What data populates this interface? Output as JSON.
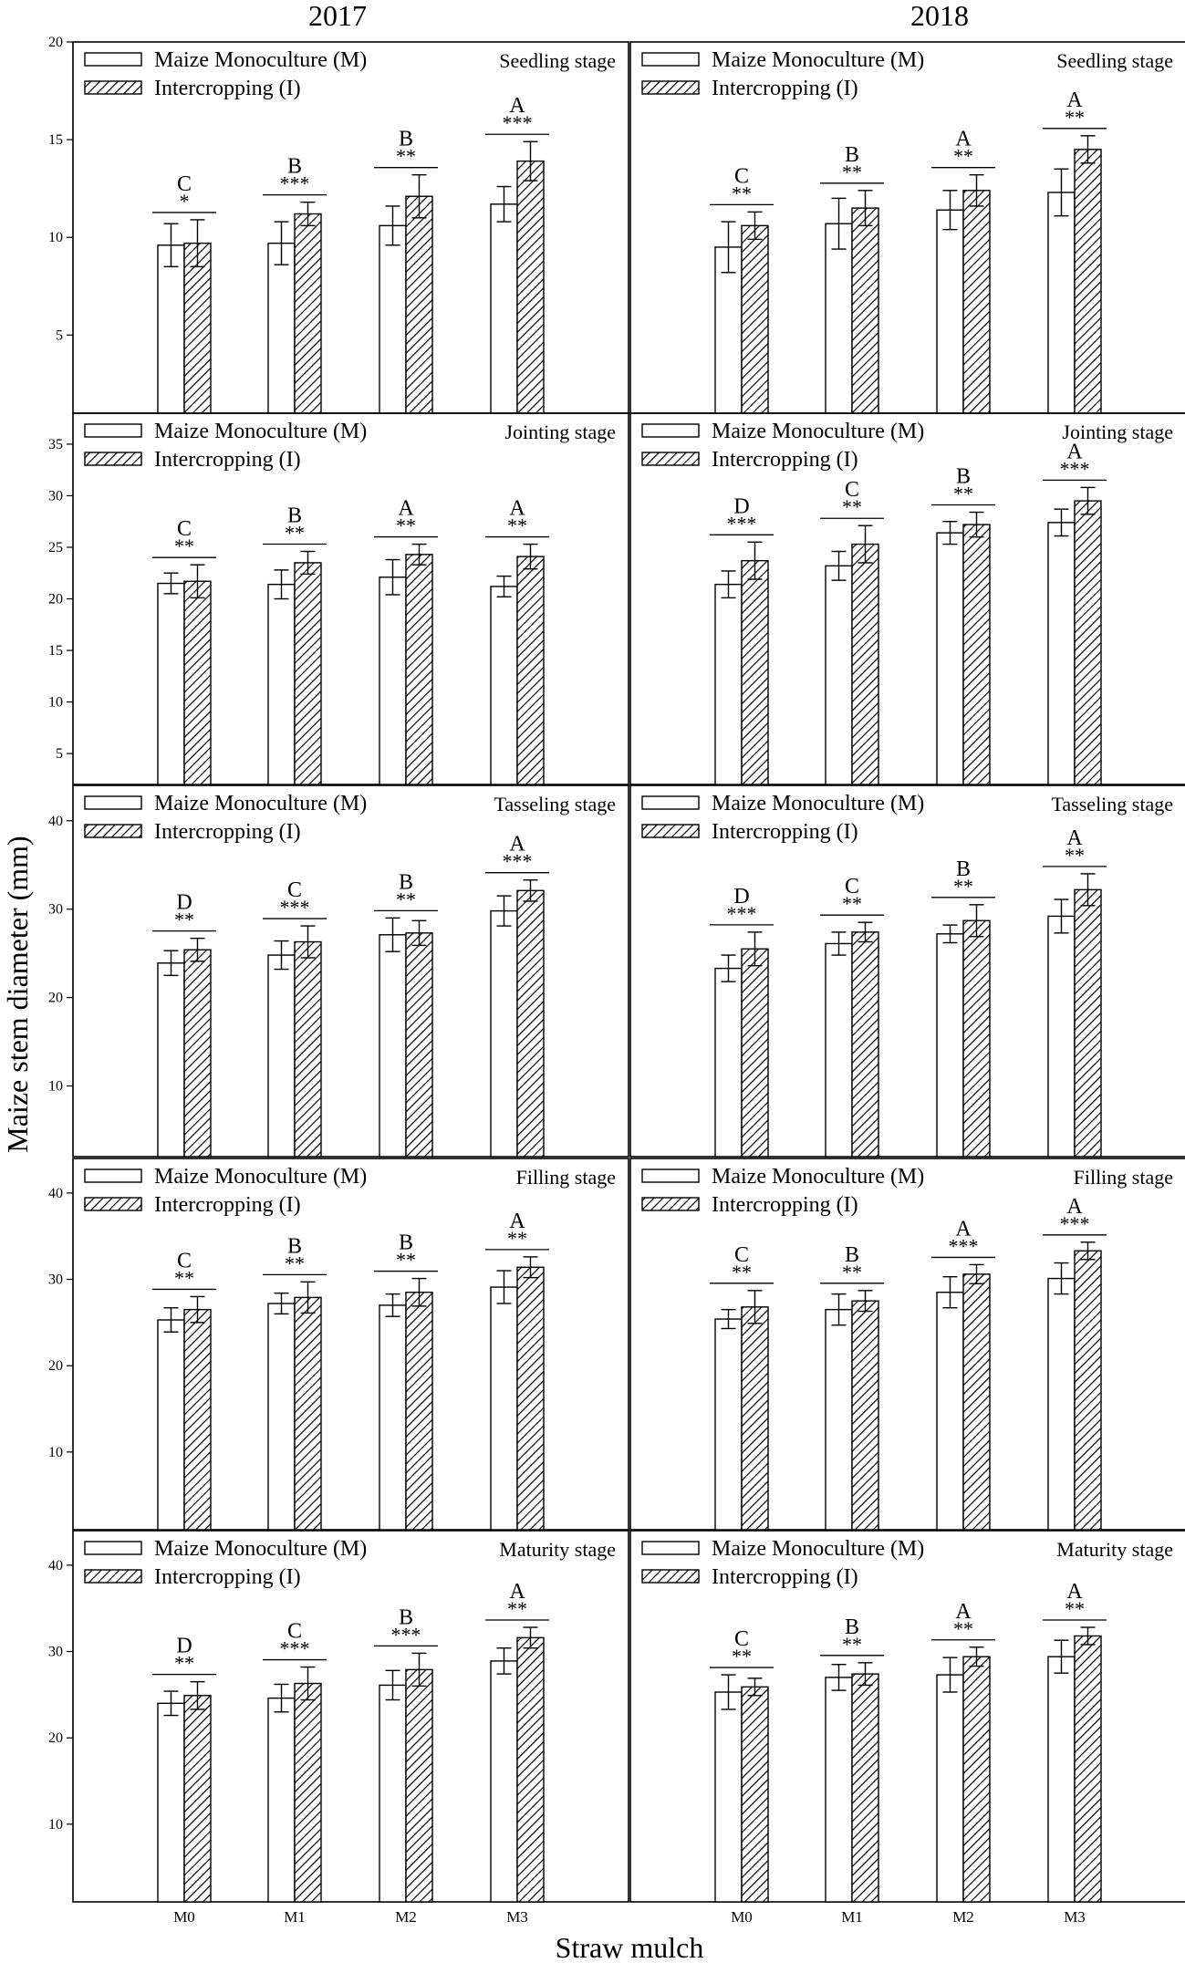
{
  "figure": {
    "year_titles": [
      "2017",
      "2018"
    ],
    "ylabel": "Maize stem diameter (mm)",
    "xlabel": "Straw mulch",
    "categories": [
      "M0",
      "M1",
      "M2",
      "M3"
    ],
    "legend": [
      "Maize Monoculture (M)",
      "Intercropping (I)"
    ],
    "colors": {
      "monoculture_fill": "#ffffff",
      "hatch": "#000000",
      "frame": "#000000"
    }
  },
  "chart_data": [
    {
      "type": "bar",
      "year": "2017",
      "stage": "Seedling stage",
      "ylim": [
        1,
        20
      ],
      "yticks": [
        5,
        10,
        15,
        20
      ],
      "series": [
        {
          "name": "Maize Monoculture (M)",
          "values": [
            9.6,
            9.7,
            10.6,
            11.7
          ],
          "errors": [
            1.1,
            1.1,
            1.0,
            0.9
          ]
        },
        {
          "name": "Intercropping (I)",
          "values": [
            9.7,
            11.2,
            12.1,
            13.9
          ],
          "errors": [
            1.2,
            0.6,
            1.1,
            1.0
          ]
        }
      ],
      "letters": [
        "C",
        "B",
        "B",
        "A"
      ],
      "stars": [
        "*",
        "***",
        "**",
        "***"
      ]
    },
    {
      "type": "bar",
      "year": "2018",
      "stage": "Seedling stage",
      "ylim": [
        1,
        20
      ],
      "yticks": [
        5,
        10,
        15,
        20
      ],
      "series": [
        {
          "name": "Maize Monoculture (M)",
          "values": [
            9.5,
            10.7,
            11.4,
            12.3
          ],
          "errors": [
            1.3,
            1.3,
            1.0,
            1.2
          ]
        },
        {
          "name": "Intercropping (I)",
          "values": [
            10.6,
            11.5,
            12.4,
            14.5
          ],
          "errors": [
            0.7,
            0.9,
            0.8,
            0.7
          ]
        }
      ],
      "letters": [
        "C",
        "B",
        "A",
        "A"
      ],
      "stars": [
        "**",
        "**",
        "**",
        "**"
      ]
    },
    {
      "type": "bar",
      "year": "2017",
      "stage": "Jointing stage",
      "ylim": [
        2,
        38
      ],
      "yticks": [
        5,
        10,
        15,
        20,
        25,
        30,
        35
      ],
      "series": [
        {
          "name": "Maize Monoculture (M)",
          "values": [
            21.5,
            21.4,
            22.1,
            21.2
          ],
          "errors": [
            1.0,
            1.4,
            1.7,
            1.0
          ]
        },
        {
          "name": "Intercropping (I)",
          "values": [
            21.7,
            23.5,
            24.3,
            24.1
          ],
          "errors": [
            1.6,
            1.1,
            1.0,
            1.2
          ]
        }
      ],
      "letters": [
        "C",
        "B",
        "A",
        "A"
      ],
      "stars": [
        "**",
        "**",
        "**",
        "**"
      ]
    },
    {
      "type": "bar",
      "year": "2018",
      "stage": "Jointing stage",
      "ylim": [
        2,
        38
      ],
      "yticks": [
        5,
        10,
        15,
        20,
        25,
        30,
        35
      ],
      "series": [
        {
          "name": "Maize Monoculture (M)",
          "values": [
            21.4,
            23.2,
            26.4,
            27.4
          ],
          "errors": [
            1.3,
            1.4,
            1.1,
            1.3
          ]
        },
        {
          "name": "Intercropping (I)",
          "values": [
            23.7,
            25.3,
            27.2,
            29.5
          ],
          "errors": [
            1.8,
            1.8,
            1.2,
            1.3
          ]
        }
      ],
      "letters": [
        "D",
        "C",
        "B",
        "A"
      ],
      "stars": [
        "***",
        "**",
        "**",
        "***"
      ]
    },
    {
      "type": "bar",
      "year": "2017",
      "stage": "Tasseling stage",
      "ylim": [
        2,
        44
      ],
      "yticks": [
        10,
        20,
        30,
        40
      ],
      "series": [
        {
          "name": "Maize Monoculture (M)",
          "values": [
            23.9,
            24.8,
            27.1,
            29.8
          ],
          "errors": [
            1.4,
            1.6,
            1.9,
            1.7
          ]
        },
        {
          "name": "Intercropping (I)",
          "values": [
            25.4,
            26.3,
            27.3,
            32.1
          ],
          "errors": [
            1.3,
            1.8,
            1.4,
            1.2
          ]
        }
      ],
      "letters": [
        "D",
        "C",
        "B",
        "A"
      ],
      "stars": [
        "**",
        "***",
        "**",
        "***"
      ]
    },
    {
      "type": "bar",
      "year": "2018",
      "stage": "Tasseling stage",
      "ylim": [
        2,
        44
      ],
      "yticks": [
        10,
        20,
        30,
        40
      ],
      "series": [
        {
          "name": "Maize Monoculture (M)",
          "values": [
            23.3,
            26.1,
            27.2,
            29.2
          ],
          "errors": [
            1.5,
            1.3,
            1.0,
            1.9
          ]
        },
        {
          "name": "Intercropping (I)",
          "values": [
            25.5,
            27.4,
            28.7,
            32.2
          ],
          "errors": [
            1.9,
            1.1,
            1.8,
            1.8
          ]
        }
      ],
      "letters": [
        "D",
        "C",
        "B",
        "A"
      ],
      "stars": [
        "***",
        "**",
        "**",
        "**"
      ]
    },
    {
      "type": "bar",
      "year": "2017",
      "stage": "Filling stage",
      "ylim": [
        1,
        44
      ],
      "yticks": [
        10,
        20,
        30,
        40
      ],
      "series": [
        {
          "name": "Maize Monoculture (M)",
          "values": [
            25.3,
            27.2,
            27.0,
            29.1
          ],
          "errors": [
            1.4,
            1.2,
            1.3,
            1.9
          ]
        },
        {
          "name": "Intercropping (I)",
          "values": [
            26.5,
            27.9,
            28.5,
            31.4
          ],
          "errors": [
            1.5,
            1.8,
            1.6,
            1.2
          ]
        }
      ],
      "letters": [
        "C",
        "B",
        "B",
        "A"
      ],
      "stars": [
        "**",
        "**",
        "**",
        "**"
      ]
    },
    {
      "type": "bar",
      "year": "2018",
      "stage": "Filling stage",
      "ylim": [
        1,
        44
      ],
      "yticks": [
        10,
        20,
        30,
        40
      ],
      "series": [
        {
          "name": "Maize Monoculture (M)",
          "values": [
            25.4,
            26.5,
            28.5,
            30.1
          ],
          "errors": [
            1.1,
            1.8,
            1.8,
            1.8
          ]
        },
        {
          "name": "Intercropping (I)",
          "values": [
            26.8,
            27.5,
            30.6,
            33.3
          ],
          "errors": [
            1.9,
            1.2,
            1.1,
            1.0
          ]
        }
      ],
      "letters": [
        "C",
        "B",
        "A",
        "A"
      ],
      "stars": [
        "**",
        "**",
        "***",
        "***"
      ]
    },
    {
      "type": "bar",
      "year": "2017",
      "stage": "Maturity stage",
      "ylim": [
        1,
        44
      ],
      "yticks": [
        10,
        20,
        30,
        40
      ],
      "series": [
        {
          "name": "Maize Monoculture (M)",
          "values": [
            24.0,
            24.6,
            26.1,
            28.9
          ],
          "errors": [
            1.4,
            1.6,
            1.7,
            1.5
          ]
        },
        {
          "name": "Intercropping (I)",
          "values": [
            24.9,
            26.3,
            27.9,
            31.6
          ],
          "errors": [
            1.6,
            1.9,
            1.9,
            1.2
          ]
        }
      ],
      "letters": [
        "D",
        "C",
        "B",
        "A"
      ],
      "stars": [
        "**",
        "***",
        "***",
        "**"
      ]
    },
    {
      "type": "bar",
      "year": "2018",
      "stage": "Maturity stage",
      "ylim": [
        1,
        44
      ],
      "yticks": [
        10,
        20,
        30,
        40
      ],
      "series": [
        {
          "name": "Maize Monoculture (M)",
          "values": [
            25.3,
            27.0,
            27.3,
            29.4
          ],
          "errors": [
            2.0,
            1.5,
            2.0,
            1.9
          ]
        },
        {
          "name": "Intercropping (I)",
          "values": [
            25.9,
            27.4,
            29.4,
            31.8
          ],
          "errors": [
            1.0,
            1.3,
            1.1,
            1.0
          ]
        }
      ],
      "letters": [
        "C",
        "B",
        "A",
        "A"
      ],
      "stars": [
        "**",
        "**",
        "**",
        "**"
      ]
    }
  ]
}
